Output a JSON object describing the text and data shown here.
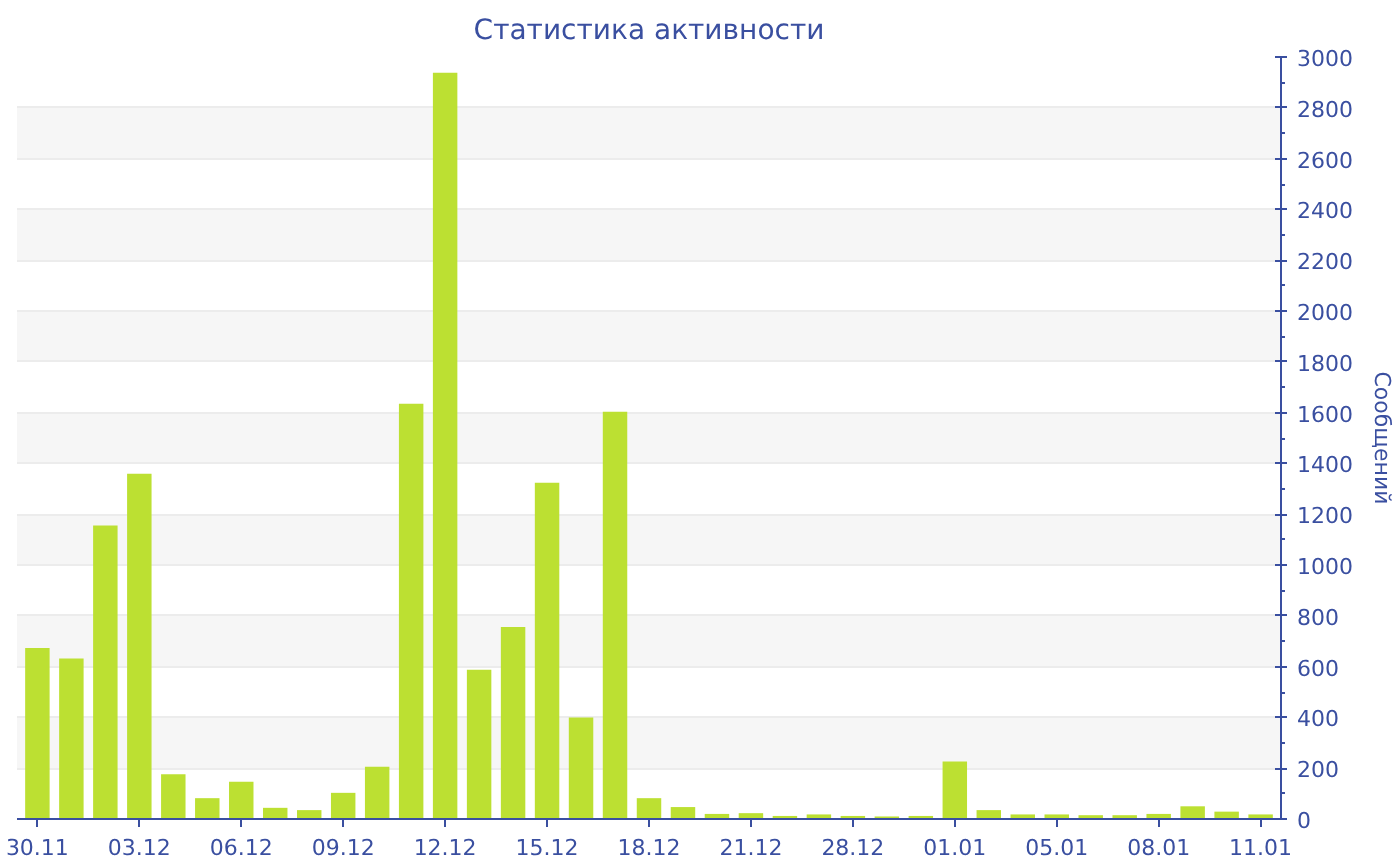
{
  "chart_data": {
    "type": "bar",
    "title": "Статистика активности",
    "ylabel": "Сообщений",
    "categories": [
      "30.11",
      null,
      null,
      "03.12",
      null,
      null,
      "06.12",
      null,
      null,
      "09.12",
      null,
      null,
      "12.12",
      null,
      null,
      "15.12",
      null,
      null,
      "18.12",
      null,
      null,
      "21.12",
      null,
      null,
      "28.12",
      null,
      null,
      "01.01",
      null,
      null,
      "05.01",
      null,
      null,
      "08.01",
      null,
      null,
      "11.01"
    ],
    "values": [
      673,
      632,
      1156,
      1359,
      176,
      82,
      147,
      44,
      35,
      103,
      206,
      1635,
      2938,
      588,
      756,
      1324,
      400,
      1603,
      82,
      47,
      20,
      23,
      12,
      18,
      12,
      10,
      12,
      226,
      35,
      18,
      18,
      15,
      15,
      20,
      50,
      29,
      18
    ],
    "color": "#bce032",
    "ylim": [
      0,
      3000
    ],
    "yticks": [
      0,
      200,
      400,
      600,
      800,
      1000,
      1200,
      1400,
      1600,
      1800,
      2000,
      2200,
      2400,
      2600,
      2800,
      3000
    ],
    "grid": "y"
  }
}
